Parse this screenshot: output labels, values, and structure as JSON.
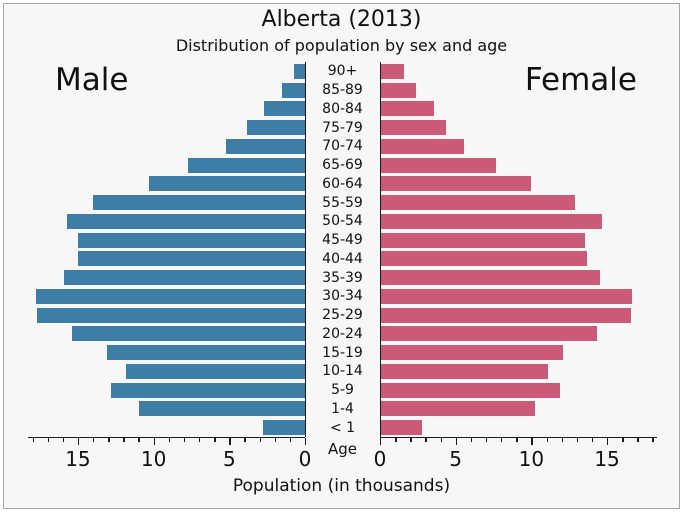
{
  "figure": {
    "title": "Alberta (2013)",
    "subtitle": "Distribution of population by sex and age",
    "left_label": "Male",
    "right_label": "Female",
    "xlabel": "Population (in thousands)",
    "age_axis_label": "Age"
  },
  "colors": {
    "male_bar": "#3e7da5",
    "female_bar": "#cb5a78",
    "plot_background": "#f7f7f7",
    "frame_border": "#a6a6a6",
    "axis": "#1a1a1a",
    "text": "#111111"
  },
  "chart_data": {
    "type": "bar",
    "variant": "population-pyramid",
    "title": "Alberta (2013)",
    "subtitle": "Distribution of population by sex and age",
    "xlabel": "Population (in thousands)",
    "age_label": "Age",
    "categories": [
      "90+",
      "85-89",
      "80-84",
      "75-79",
      "70-74",
      "65-69",
      "60-64",
      "55-59",
      "50-54",
      "45-49",
      "40-44",
      "35-39",
      "30-34",
      "25-29",
      "20-24",
      "15-19",
      "10-14",
      "5-9",
      "1-4",
      "< 1"
    ],
    "series": [
      {
        "name": "Male",
        "values": [
          0.7,
          1.5,
          2.7,
          3.8,
          5.2,
          7.7,
          10.3,
          14.0,
          15.7,
          15.0,
          15.0,
          15.9,
          17.8,
          17.7,
          15.4,
          13.1,
          11.8,
          12.8,
          11.0,
          2.8
        ]
      },
      {
        "name": "Female",
        "values": [
          1.5,
          2.3,
          3.5,
          4.3,
          5.5,
          7.6,
          9.9,
          12.8,
          14.6,
          13.5,
          13.6,
          14.5,
          16.6,
          16.5,
          14.3,
          12.0,
          11.0,
          11.8,
          10.2,
          2.7
        ]
      }
    ],
    "axis": {
      "max": 18.3,
      "major_ticks": [
        0,
        5,
        10,
        15
      ],
      "minor_tick_step": 1,
      "unit": "thousands",
      "grid": false
    }
  }
}
